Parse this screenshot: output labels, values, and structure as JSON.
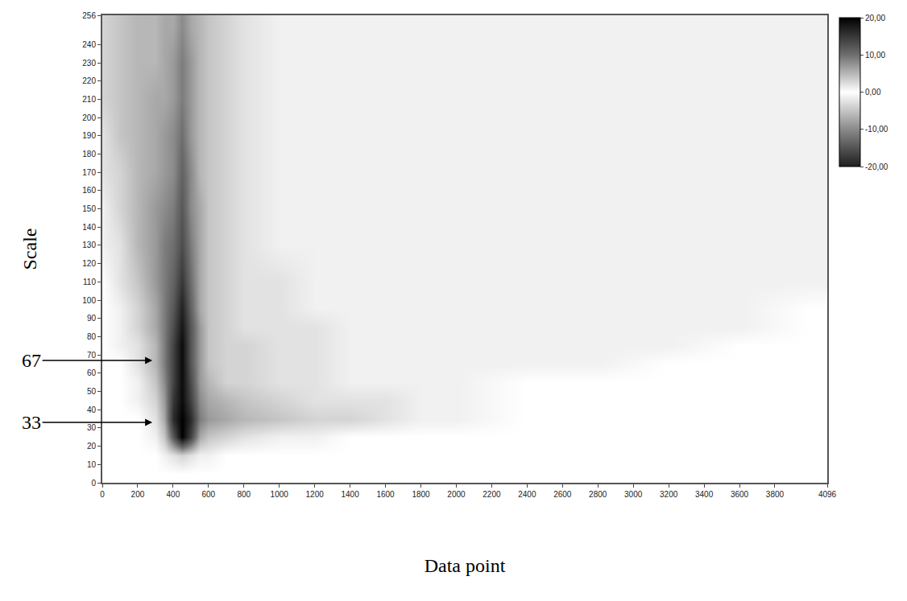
{
  "chart_data": {
    "type": "heatmap",
    "x_label": "Data point",
    "y_label": "Scale",
    "x": [
      0,
      100,
      200,
      300,
      350,
      400,
      450,
      500,
      550,
      600,
      700,
      800,
      1000,
      1200,
      1400,
      1600,
      1800,
      2000,
      2400,
      2800,
      3200,
      3600,
      4000,
      4096
    ],
    "y": [
      5,
      15,
      25,
      35,
      45,
      55,
      65,
      75,
      85,
      95,
      110,
      130,
      150,
      170,
      190,
      210,
      230,
      250
    ],
    "z": [
      [
        0,
        0,
        0,
        0,
        0,
        0,
        0,
        0,
        0,
        0,
        0,
        0,
        0,
        0,
        0,
        0,
        0,
        0,
        0,
        0,
        0,
        0,
        0,
        0
      ],
      [
        0,
        0,
        0,
        0,
        1,
        2,
        3,
        2,
        1,
        1,
        0,
        0,
        0,
        0,
        0,
        0,
        0,
        0,
        0,
        0,
        0,
        0,
        0,
        0
      ],
      [
        0,
        0,
        0,
        1,
        4,
        12,
        20,
        14,
        6,
        4,
        3,
        2,
        1,
        1,
        0,
        0,
        0,
        0,
        0,
        0,
        0,
        0,
        0,
        0
      ],
      [
        0,
        0,
        0,
        2,
        6,
        16,
        20,
        16,
        9,
        7,
        6,
        5,
        4,
        3,
        3,
        2,
        1,
        1,
        0,
        0,
        0,
        0,
        0,
        0
      ],
      [
        0,
        0,
        1,
        3,
        7,
        15,
        19,
        14,
        8,
        6,
        5,
        4,
        3,
        2,
        2,
        2,
        1,
        1,
        0,
        0,
        0,
        0,
        0,
        0
      ],
      [
        0,
        0,
        1,
        4,
        8,
        14,
        19,
        13,
        7,
        5,
        3,
        3,
        2,
        2,
        1,
        1,
        1,
        1,
        0,
        0,
        0,
        0,
        0,
        0
      ],
      [
        0,
        0,
        2,
        5,
        9,
        14,
        19,
        12,
        7,
        4,
        3,
        3,
        2,
        2,
        1,
        1,
        1,
        1,
        1,
        1,
        0,
        0,
        0,
        0
      ],
      [
        0,
        1,
        2,
        5,
        9,
        14,
        19,
        12,
        7,
        4,
        3,
        3,
        2,
        2,
        1,
        1,
        1,
        1,
        1,
        1,
        1,
        0,
        0,
        0
      ],
      [
        0,
        1,
        3,
        6,
        9,
        13,
        18,
        12,
        7,
        4,
        3,
        2,
        2,
        2,
        1,
        1,
        1,
        1,
        1,
        1,
        1,
        1,
        0,
        0
      ],
      [
        0,
        1,
        3,
        6,
        9,
        12,
        17,
        11,
        6,
        4,
        3,
        2,
        2,
        1,
        1,
        1,
        1,
        1,
        1,
        1,
        1,
        1,
        0,
        0
      ],
      [
        0,
        2,
        4,
        7,
        9,
        11,
        15,
        10,
        6,
        4,
        3,
        2,
        2,
        1,
        1,
        1,
        1,
        1,
        1,
        1,
        1,
        1,
        1,
        1
      ],
      [
        1,
        2,
        5,
        7,
        9,
        10,
        13,
        9,
        6,
        4,
        3,
        2,
        1,
        1,
        1,
        1,
        1,
        1,
        1,
        1,
        1,
        1,
        1,
        1
      ],
      [
        1,
        3,
        5,
        7,
        8,
        9,
        12,
        8,
        6,
        4,
        3,
        2,
        1,
        1,
        1,
        1,
        1,
        1,
        1,
        1,
        1,
        1,
        1,
        1
      ],
      [
        2,
        3,
        5,
        6,
        7,
        8,
        11,
        8,
        5,
        4,
        3,
        2,
        1,
        1,
        1,
        1,
        1,
        1,
        1,
        1,
        1,
        1,
        1,
        1
      ],
      [
        2,
        4,
        5,
        6,
        7,
        8,
        10,
        7,
        5,
        4,
        3,
        2,
        1,
        1,
        1,
        1,
        1,
        1,
        1,
        1,
        1,
        1,
        1,
        1
      ],
      [
        3,
        4,
        5,
        6,
        6,
        7,
        9,
        7,
        5,
        4,
        3,
        2,
        1,
        1,
        1,
        1,
        1,
        1,
        1,
        1,
        1,
        1,
        1,
        1
      ],
      [
        3,
        4,
        5,
        5,
        6,
        7,
        9,
        7,
        5,
        4,
        3,
        2,
        1,
        1,
        1,
        1,
        1,
        1,
        1,
        1,
        1,
        1,
        1,
        1
      ],
      [
        3,
        4,
        5,
        5,
        6,
        6,
        8,
        6,
        5,
        4,
        3,
        2,
        1,
        1,
        1,
        1,
        1,
        1,
        1,
        1,
        1,
        1,
        1,
        1
      ]
    ],
    "xlim": [
      0,
      4096
    ],
    "ylim": [
      0,
      256
    ],
    "xticks": [
      0,
      200,
      400,
      600,
      800,
      1000,
      1200,
      1400,
      1600,
      1800,
      2000,
      2200,
      2400,
      2600,
      2800,
      3000,
      3200,
      3400,
      3600,
      3800,
      4096
    ],
    "yticks": [
      0,
      10,
      20,
      30,
      40,
      50,
      60,
      70,
      80,
      90,
      100,
      110,
      120,
      130,
      140,
      150,
      160,
      170,
      180,
      190,
      200,
      210,
      220,
      230,
      240,
      256
    ],
    "colorbar": {
      "range": [
        -20,
        20
      ],
      "ticks": [
        {
          "value": 20,
          "label": "20,00"
        },
        {
          "value": 10,
          "label": "10,00"
        },
        {
          "value": 0,
          "label": "0,00"
        },
        {
          "value": -10,
          "label": "-10,00"
        },
        {
          "value": -20,
          "label": "-20,00"
        }
      ]
    },
    "annotations": [
      {
        "text": "67",
        "y": 67
      },
      {
        "text": "33",
        "y": 33
      }
    ]
  }
}
